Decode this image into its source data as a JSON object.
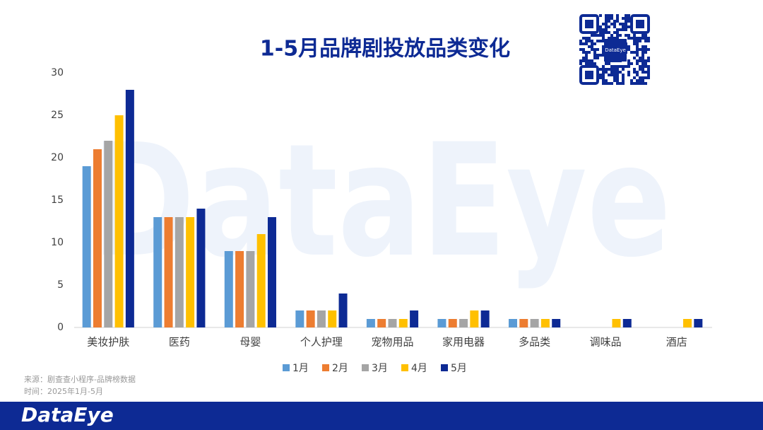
{
  "chart_data": {
    "type": "bar",
    "title": "1-5月品牌剧投放品类变化",
    "categories": [
      "美妆护肤",
      "医药",
      "母婴",
      "个人护理",
      "宠物用品",
      "家用电器",
      "多品类",
      "调味品",
      "酒店"
    ],
    "series": [
      {
        "name": "1月",
        "color": "#5b9bd5",
        "values": [
          19,
          13,
          9,
          2,
          1,
          1,
          1,
          0,
          0
        ]
      },
      {
        "name": "2月",
        "color": "#ed7d31",
        "values": [
          21,
          13,
          9,
          2,
          1,
          1,
          1,
          0,
          0
        ]
      },
      {
        "name": "3月",
        "color": "#a5a5a5",
        "values": [
          22,
          13,
          9,
          2,
          1,
          1,
          1,
          0,
          0
        ]
      },
      {
        "name": "4月",
        "color": "#ffc000",
        "values": [
          25,
          13,
          11,
          2,
          1,
          2,
          1,
          1,
          1
        ]
      },
      {
        "name": "5月",
        "color": "#0d2a94",
        "values": [
          28,
          14,
          13,
          4,
          2,
          2,
          1,
          1,
          1
        ]
      }
    ],
    "ylim": [
      0,
      30
    ],
    "yticks": [
      0,
      5,
      10,
      15,
      20,
      25,
      30
    ],
    "grid": false,
    "legend": "bottom",
    "source": "来源：剧查查小程序-品牌榜数据",
    "time": "时间：2025年1月-5月"
  },
  "watermark": "DataEye",
  "qr_label": "DataEye",
  "footer": {
    "brand": "DataEye"
  }
}
